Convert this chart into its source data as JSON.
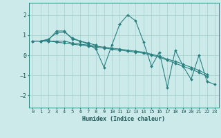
{
  "xlabel": "Humidex (Indice chaleur)",
  "ylabel": "",
  "xlim": [
    -0.5,
    23.5
  ],
  "ylim": [
    -2.6,
    2.6
  ],
  "yticks": [
    -2,
    -1,
    0,
    1,
    2
  ],
  "xticks": [
    0,
    1,
    2,
    3,
    4,
    5,
    6,
    7,
    8,
    9,
    10,
    11,
    12,
    13,
    14,
    15,
    16,
    17,
    18,
    19,
    20,
    21,
    22,
    23
  ],
  "background_color": "#cceaea",
  "grid_color": "#aad4d4",
  "line_color": "#2a8080",
  "lines": [
    [
      0.7,
      0.7,
      0.75,
      1.2,
      1.2,
      0.8,
      0.7,
      0.6,
      0.5,
      null,
      null,
      null,
      null,
      null,
      null,
      null,
      null,
      null,
      null,
      null,
      null,
      null,
      null,
      null
    ],
    [
      0.7,
      0.7,
      0.8,
      1.1,
      1.15,
      0.85,
      0.7,
      0.55,
      0.3,
      -0.6,
      0.5,
      1.55,
      2.0,
      1.7,
      0.65,
      -0.55,
      0.15,
      -1.6,
      0.25,
      -0.55,
      -1.2,
      0.0,
      -1.3,
      -1.45
    ],
    [
      0.7,
      0.7,
      0.7,
      0.7,
      0.7,
      0.6,
      0.55,
      0.5,
      0.45,
      0.4,
      0.35,
      0.3,
      0.25,
      0.2,
      0.15,
      0.05,
      -0.05,
      -0.2,
      -0.3,
      -0.45,
      -0.6,
      -0.75,
      -0.95,
      null
    ],
    [
      0.7,
      0.7,
      0.7,
      0.65,
      0.6,
      0.55,
      0.5,
      0.45,
      0.4,
      0.35,
      0.3,
      0.25,
      0.2,
      0.15,
      0.1,
      0.0,
      -0.1,
      -0.25,
      -0.4,
      -0.55,
      -0.7,
      -0.85,
      -1.05,
      null
    ]
  ]
}
